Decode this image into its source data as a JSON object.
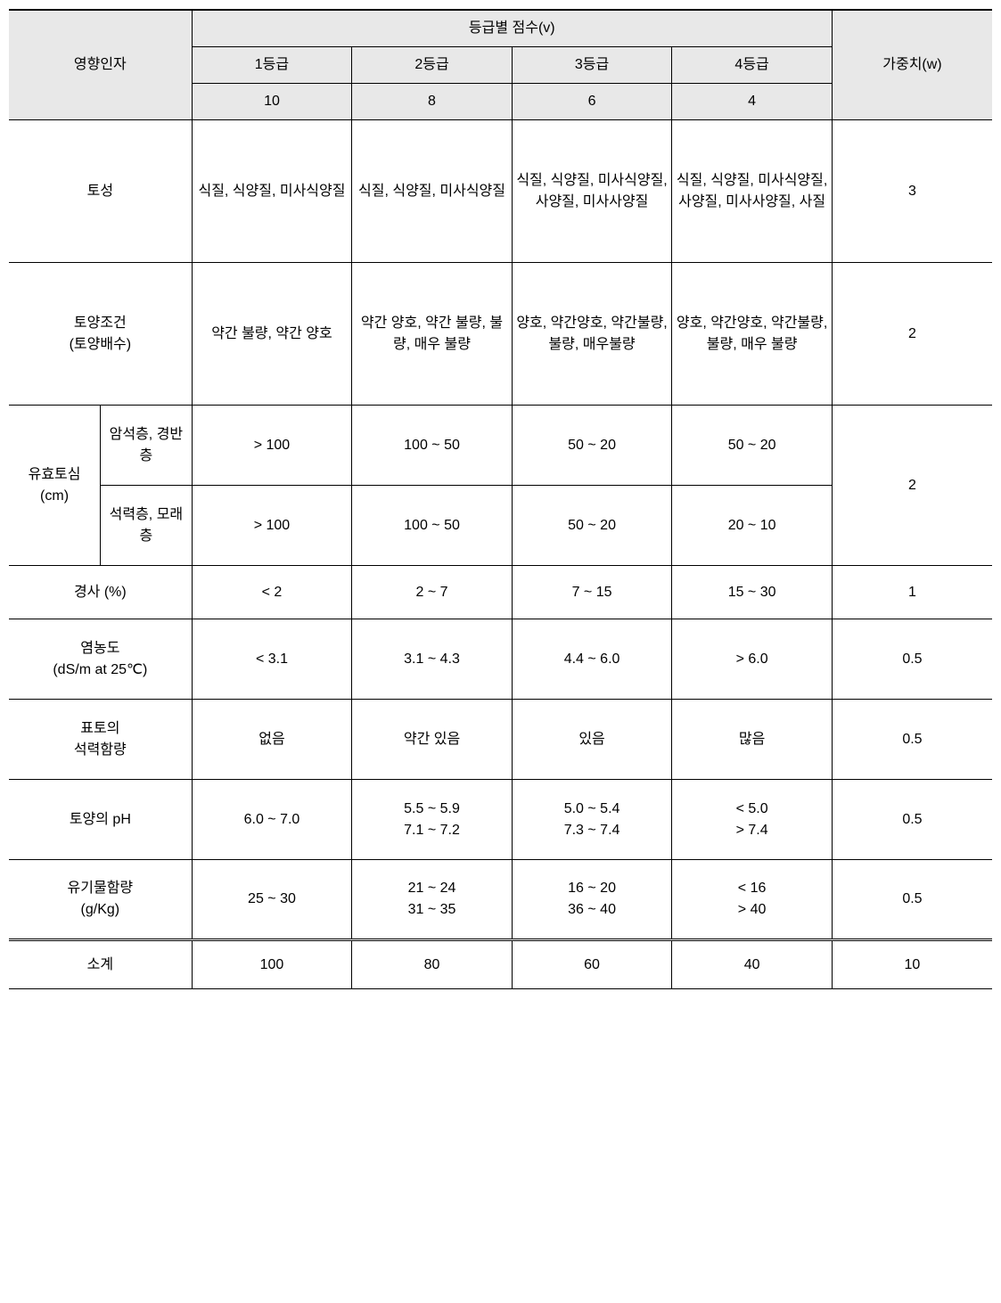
{
  "header": {
    "factor": "영향인자",
    "score_group": "등급별 점수(v)",
    "grade1": "1등급",
    "grade2": "2등급",
    "grade3": "3등급",
    "grade4": "4등급",
    "score1": "10",
    "score2": "8",
    "score3": "6",
    "score4": "4",
    "weight": "가중치(w)"
  },
  "rows": {
    "r1": {
      "label": "토성",
      "g1": "식질, 식양질, 미사식양질",
      "g2": "식질, 식양질, 미사식양질",
      "g3": "식질, 식양질, 미사식양질, 사양질, 미사사양질",
      "g4": "식질, 식양질, 미사식양질, 사양질, 미사사양질, 사질",
      "w": "3"
    },
    "r2": {
      "label": "토양조건\n(토양배수)",
      "g1": "약간 불량, 약간 양호",
      "g2": "약간 양호, 약간 불량, 불량, 매우 불량",
      "g3": "양호, 약간양호, 약간불량, 불량, 매우불량",
      "g4": "양호, 약간양호, 약간불량, 불량, 매우 불량",
      "w": "2"
    },
    "r3": {
      "label": "유효토심\n(cm)",
      "sub1": "암석층, 경반층",
      "sub2": "석력층, 모래층",
      "s1g1": "> 100",
      "s1g2": "100 ~ 50",
      "s1g3": "50 ~ 20",
      "s1g4": "50 ~ 20",
      "s2g1": "> 100",
      "s2g2": "100 ~ 50",
      "s2g3": "50 ~ 20",
      "s2g4": "20 ~ 10",
      "w": "2"
    },
    "r4": {
      "label": "경사 (%)",
      "g1": "< 2",
      "g2": "2 ~ 7",
      "g3": "7 ~ 15",
      "g4": "15 ~ 30",
      "w": "1"
    },
    "r5": {
      "label": "염농도\n(dS/m at 25℃)",
      "g1": "< 3.1",
      "g2": "3.1 ~ 4.3",
      "g3": "4.4 ~ 6.0",
      "g4": "> 6.0",
      "w": "0.5"
    },
    "r6": {
      "label": "표토의\n석력함량",
      "g1": "없음",
      "g2": "약간 있음",
      "g3": "있음",
      "g4": "많음",
      "w": "0.5"
    },
    "r7": {
      "label": "토양의 pH",
      "g1": "6.0 ~ 7.0",
      "g2": "5.5 ~ 5.9\n7.1 ~ 7.2",
      "g3": "5.0 ~ 5.4\n7.3 ~ 7.4",
      "g4": "< 5.0\n> 7.4",
      "w": "0.5"
    },
    "r8": {
      "label": "유기물함량\n(g/Kg)",
      "g1": "25 ~ 30",
      "g2": "21 ~ 24\n31 ~ 35",
      "g3": "16 ~ 20\n36 ~ 40",
      "g4": "< 16\n> 40",
      "w": "0.5"
    },
    "subtotal": {
      "label": "소계",
      "g1": "100",
      "g2": "80",
      "g3": "60",
      "g4": "40",
      "w": "10"
    }
  },
  "styling": {
    "header_bg": "#e8e8e8",
    "border_color": "#000000",
    "text_color": "#000000",
    "background_color": "#ffffff",
    "font_size": 16,
    "col_widths_pct": [
      8,
      8,
      14,
      14,
      14,
      14,
      14,
      14
    ]
  }
}
